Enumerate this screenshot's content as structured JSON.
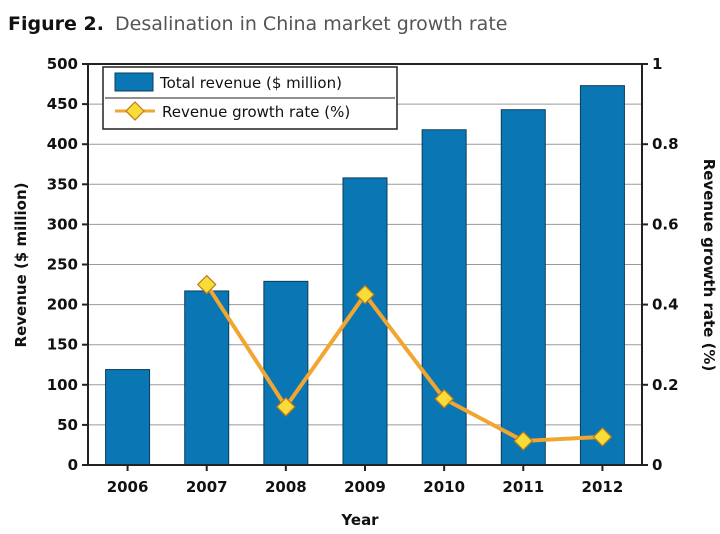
{
  "title": {
    "prefix": "Figure 2.",
    "text": "Desalination in China market growth rate"
  },
  "colors": {
    "bar": "#0a77b4",
    "line": "#f0a630",
    "marker": "#f7dc3a",
    "grid": "#9a9a9a"
  },
  "chart_data": {
    "type": "bar",
    "categories": [
      "2006",
      "2007",
      "2008",
      "2009",
      "2010",
      "2011",
      "2012"
    ],
    "series": [
      {
        "name": "Total revenue ($ million)",
        "type": "bar",
        "axis": "left",
        "values": [
          119,
          217,
          229,
          358,
          418,
          443,
          473
        ]
      },
      {
        "name": "Revenue growth rate (%)",
        "type": "line",
        "axis": "right",
        "values": [
          null,
          0.45,
          0.145,
          0.425,
          0.165,
          0.06,
          0.07
        ]
      }
    ],
    "xlabel": "Year",
    "ylabel": "Revenue ($ million)",
    "y2label": "Revenue growth rate (%)",
    "ylim": [
      0,
      500
    ],
    "y2lim": [
      0,
      1
    ],
    "yticks": [
      "0",
      "50",
      "100",
      "150",
      "200",
      "250",
      "300",
      "350",
      "400",
      "450",
      "500"
    ],
    "y2ticks": [
      "0",
      "0.2",
      "0.4",
      "0.6",
      "0.8",
      "1"
    ],
    "grid": true,
    "legend": "top-left"
  }
}
